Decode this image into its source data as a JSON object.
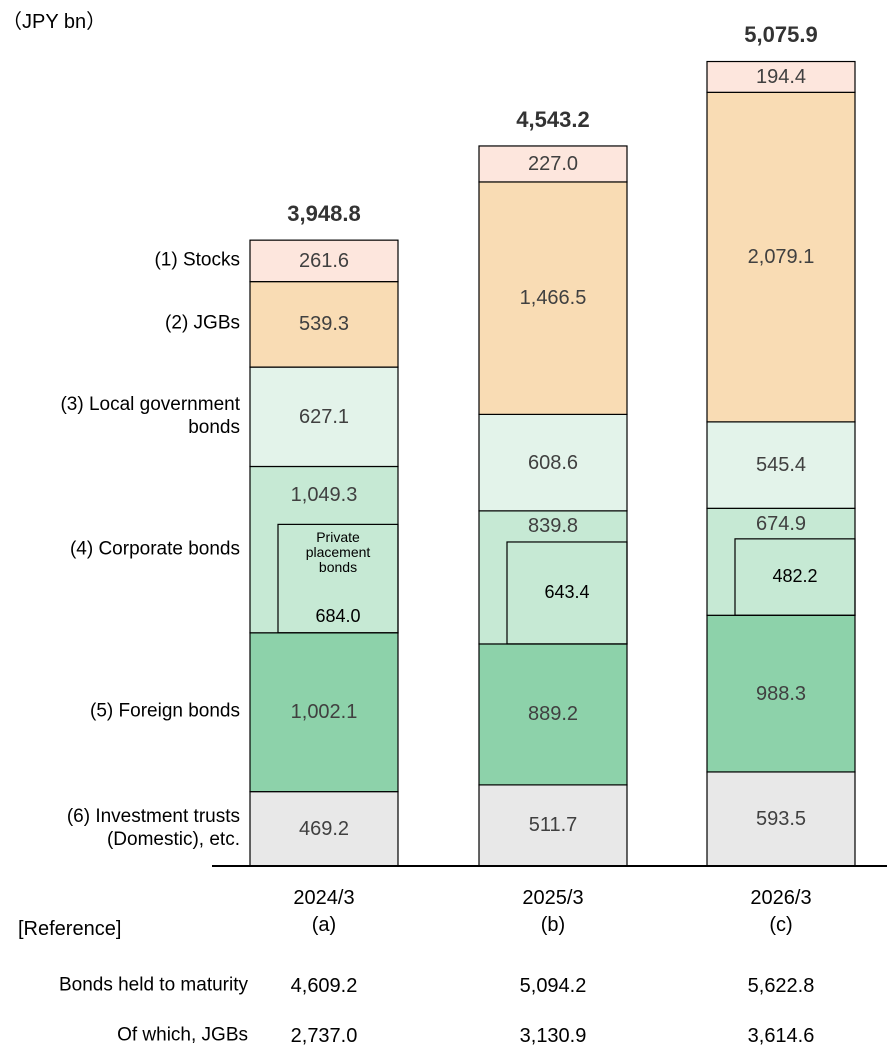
{
  "chart_data": {
    "type": "stacked_bar",
    "unit_label": "（JPY bn）",
    "categories": [
      "2024/3",
      "2025/3",
      "2026/3"
    ],
    "category_notes": [
      "(a)",
      "(b)",
      "(c)"
    ],
    "totals": [
      3948.8,
      4543.2,
      5075.9
    ],
    "total_labels": [
      "3,948.8",
      "4,543.2",
      "5,075.9"
    ],
    "series": [
      {
        "name": "(1) Stocks",
        "color": "#fde6dd",
        "values": [
          261.6,
          227.0,
          194.4
        ],
        "value_labels": [
          "261.6",
          "227.0",
          "194.4"
        ]
      },
      {
        "name": "(2) JGBs",
        "color": "#f9dcb4",
        "values": [
          539.3,
          1466.5,
          2079.1
        ],
        "value_labels": [
          "539.3",
          "1,466.5",
          "2,079.1"
        ]
      },
      {
        "name": "(3) Local government\nbonds",
        "color": "#e3f3ea",
        "values": [
          627.1,
          608.6,
          545.4
        ],
        "value_labels": [
          "627.1",
          "608.6",
          "545.4"
        ]
      },
      {
        "name": "(4) Corporate bonds",
        "color": "#c6e9d4",
        "values": [
          1049.3,
          839.8,
          674.9
        ],
        "value_labels": [
          "1,049.3",
          "839.8",
          "674.9"
        ],
        "inset": {
          "name": "Private placement bonds",
          "values": [
            684.0,
            643.4,
            482.2
          ],
          "value_labels": [
            "684.0",
            "643.4",
            "482.2"
          ]
        }
      },
      {
        "name": "(5) Foreign bonds",
        "color": "#8dd2aa",
        "values": [
          1002.1,
          889.2,
          988.3
        ],
        "value_labels": [
          "1,002.1",
          "889.2",
          "988.3"
        ]
      },
      {
        "name": "(6) Investment trusts\n(Domestic), etc.",
        "color": "#e8e8e8",
        "values": [
          469.2,
          511.7,
          593.5
        ],
        "value_labels": [
          "469.2",
          "511.7",
          "593.5"
        ]
      }
    ],
    "reference": {
      "title": "[Reference]",
      "rows": [
        {
          "label": "Bonds held to maturity",
          "values": [
            "4,609.2",
            "5,094.2",
            "5,622.8"
          ]
        },
        {
          "label": "Of which, JGBs",
          "values": [
            "2,737.0",
            "3,130.9",
            "3,614.6"
          ]
        }
      ]
    }
  }
}
